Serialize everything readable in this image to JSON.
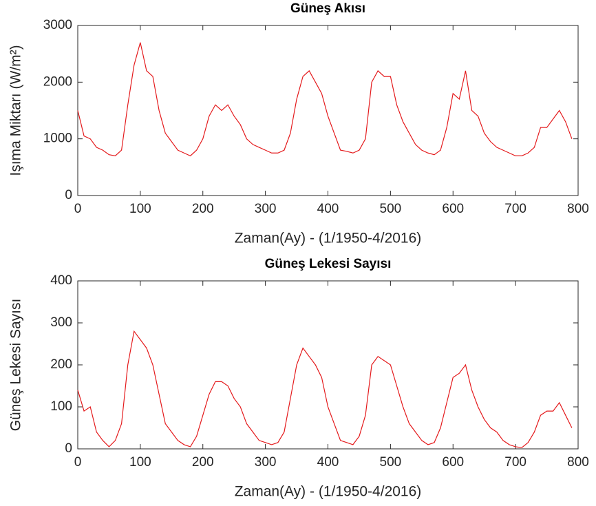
{
  "chart_data": [
    {
      "type": "line",
      "title": "Güneş Akısı",
      "xlabel": "Zaman(Ay) - (1/1950-4/2016)",
      "ylabel": "Işıma Miktarı (W/m²)",
      "color": "#e41a1c",
      "x": [
        0,
        10,
        20,
        30,
        40,
        50,
        60,
        70,
        80,
        90,
        100,
        110,
        120,
        130,
        140,
        150,
        160,
        170,
        180,
        190,
        200,
        210,
        220,
        230,
        240,
        250,
        260,
        270,
        280,
        290,
        300,
        310,
        320,
        330,
        340,
        350,
        360,
        370,
        380,
        390,
        400,
        410,
        420,
        430,
        440,
        450,
        460,
        470,
        480,
        490,
        500,
        510,
        520,
        530,
        540,
        550,
        560,
        570,
        580,
        590,
        600,
        610,
        620,
        630,
        640,
        650,
        660,
        670,
        680,
        690,
        700,
        710,
        720,
        730,
        740,
        750,
        760,
        770,
        780,
        790
      ],
      "values": [
        1500,
        1050,
        1000,
        850,
        800,
        720,
        700,
        800,
        1600,
        2300,
        2700,
        2200,
        2100,
        1500,
        1100,
        950,
        800,
        750,
        700,
        800,
        1000,
        1400,
        1600,
        1500,
        1600,
        1400,
        1250,
        1000,
        900,
        850,
        800,
        750,
        750,
        800,
        1100,
        1700,
        2100,
        2200,
        2000,
        1800,
        1400,
        1100,
        800,
        780,
        750,
        800,
        1000,
        2000,
        2200,
        2100,
        2100,
        1600,
        1300,
        1100,
        900,
        800,
        750,
        720,
        800,
        1200,
        1800,
        1700,
        2200,
        1500,
        1400,
        1100,
        950,
        850,
        800,
        750,
        700,
        700,
        750,
        850,
        1200,
        1200,
        1350,
        1500,
        1300,
        1000
      ],
      "xlim": [
        0,
        800
      ],
      "xticks": [
        0,
        100,
        200,
        300,
        400,
        500,
        600,
        700,
        800
      ],
      "ylim": [
        0,
        3000
      ],
      "yticks": [
        0,
        1000,
        2000,
        3000
      ]
    },
    {
      "type": "line",
      "title": "Güneş Lekesi Sayısı",
      "xlabel": "Zaman(Ay) - (1/1950-4/2016)",
      "ylabel": "Güneş Lekesi Sayısı",
      "color": "#e41a1c",
      "x": [
        0,
        10,
        20,
        30,
        40,
        50,
        60,
        70,
        80,
        90,
        100,
        110,
        120,
        130,
        140,
        150,
        160,
        170,
        180,
        190,
        200,
        210,
        220,
        230,
        240,
        250,
        260,
        270,
        280,
        290,
        300,
        310,
        320,
        330,
        340,
        350,
        360,
        370,
        380,
        390,
        400,
        410,
        420,
        430,
        440,
        450,
        460,
        470,
        480,
        490,
        500,
        510,
        520,
        530,
        540,
        550,
        560,
        570,
        580,
        590,
        600,
        610,
        620,
        630,
        640,
        650,
        660,
        670,
        680,
        690,
        700,
        710,
        720,
        730,
        740,
        750,
        760,
        770,
        780,
        790
      ],
      "values": [
        140,
        90,
        100,
        40,
        20,
        5,
        20,
        60,
        200,
        280,
        260,
        240,
        200,
        130,
        60,
        40,
        20,
        10,
        5,
        30,
        80,
        130,
        160,
        160,
        150,
        120,
        100,
        60,
        40,
        20,
        15,
        10,
        15,
        40,
        120,
        200,
        240,
        220,
        200,
        170,
        100,
        60,
        20,
        15,
        10,
        30,
        80,
        200,
        220,
        210,
        200,
        150,
        100,
        60,
        40,
        20,
        10,
        15,
        50,
        110,
        170,
        180,
        200,
        140,
        100,
        70,
        50,
        40,
        20,
        10,
        5,
        3,
        15,
        40,
        80,
        90,
        90,
        110,
        80,
        50
      ],
      "xlim": [
        0,
        800
      ],
      "xticks": [
        0,
        100,
        200,
        300,
        400,
        500,
        600,
        700,
        800
      ],
      "ylim": [
        0,
        400
      ],
      "yticks": [
        0,
        100,
        200,
        300,
        400
      ]
    }
  ]
}
